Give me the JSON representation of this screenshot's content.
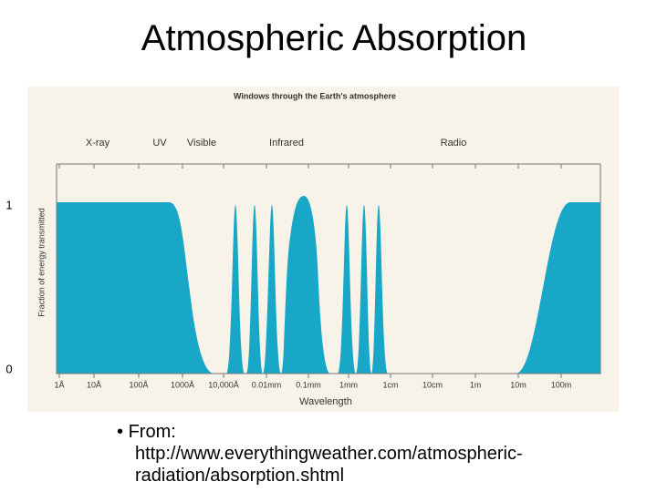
{
  "slide": {
    "title": "Atmospheric Absorption",
    "figure": {
      "title": "Windows through the Earth's atmosphere",
      "bands": [
        "X-ray",
        "UV",
        "Visible",
        "Infrared",
        "Radio"
      ],
      "y_label": "Fraction of energy transmitted",
      "y_ticks": [
        "1",
        "0"
      ],
      "x_ticks": [
        "1Å",
        "10Å",
        "100Å",
        "1000Å",
        "10,000Å",
        "0.01mm",
        "0.1mm",
        "1mm",
        "1cm",
        "10cm",
        "1m",
        "10m",
        "100m"
      ],
      "x_label": "Wavelength"
    },
    "bullet": "From: http://www.everythingweather.com/atmospheric-radiation/absorption.shtml"
  }
}
